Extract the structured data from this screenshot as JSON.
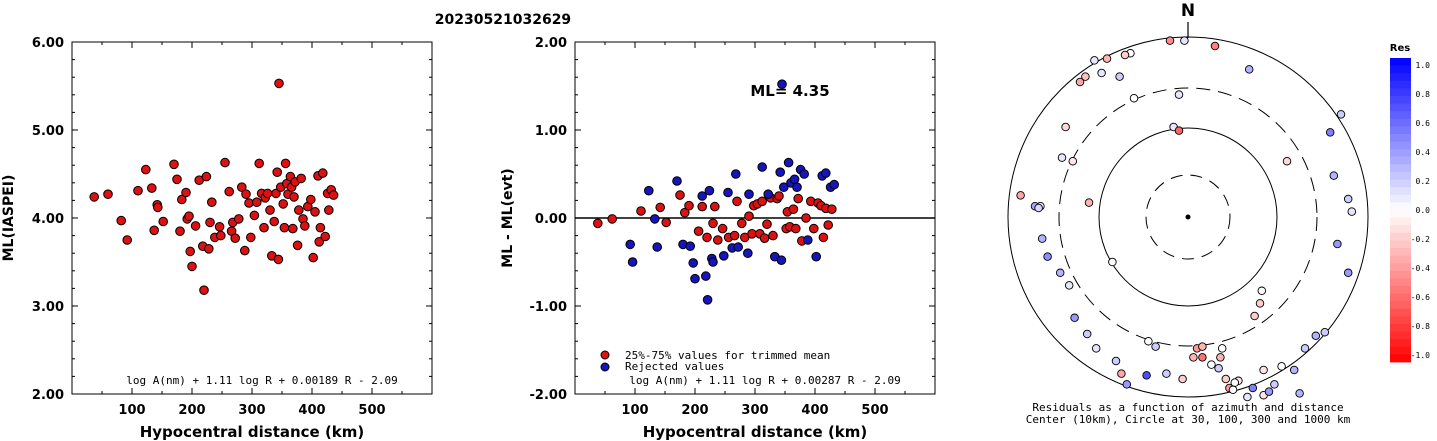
{
  "page_title": "20230521032629",
  "north_label": "N",
  "chart_data": [
    {
      "type": "scatter",
      "xlabel": "Hypocentral distance (km)",
      "ylabel": "ML(IASPEI)",
      "xlim": [
        0,
        600
      ],
      "ylim": [
        2.0,
        6.0
      ],
      "xticks": [
        "100",
        "200",
        "300",
        "400",
        "500"
      ],
      "yticks": [
        "2.00",
        "3.00",
        "4.00",
        "5.00",
        "6.00"
      ],
      "formula": "log A(nm) + 1.11 log R + 0.00189 R - 2.09",
      "series": [
        {
          "color": "#dd1111",
          "points": [
            [
              37,
              4.24
            ],
            [
              60,
              4.27
            ],
            [
              82,
              3.97
            ],
            [
              92,
              3.75
            ],
            [
              110,
              4.31
            ],
            [
              123,
              4.55
            ],
            [
              133,
              4.34
            ],
            [
              137,
              3.86
            ],
            [
              142,
              4.15
            ],
            [
              143,
              4.12
            ],
            [
              152,
              3.96
            ],
            [
              170,
              4.61
            ],
            [
              175,
              4.44
            ],
            [
              180,
              3.85
            ],
            [
              183,
              4.21
            ],
            [
              190,
              4.29
            ],
            [
              192,
              3.99
            ],
            [
              195,
              4.02
            ],
            [
              197,
              3.62
            ],
            [
              200,
              3.45
            ],
            [
              206,
              3.91
            ],
            [
              212,
              4.43
            ],
            [
              218,
              3.68
            ],
            [
              220,
              3.18
            ],
            [
              224,
              4.47
            ],
            [
              228,
              3.65
            ],
            [
              230,
              3.95
            ],
            [
              233,
              4.18
            ],
            [
              238,
              3.78
            ],
            [
              246,
              3.9
            ],
            [
              248,
              3.8
            ],
            [
              255,
              4.63
            ],
            [
              262,
              4.3
            ],
            [
              266,
              3.85
            ],
            [
              268,
              3.95
            ],
            [
              272,
              3.77
            ],
            [
              278,
              3.99
            ],
            [
              283,
              4.35
            ],
            [
              288,
              3.63
            ],
            [
              290,
              4.27
            ],
            [
              295,
              4.17
            ],
            [
              298,
              3.78
            ],
            [
              304,
              4.03
            ],
            [
              308,
              4.18
            ],
            [
              312,
              4.62
            ],
            [
              316,
              4.28
            ],
            [
              320,
              3.89
            ],
            [
              322,
              4.23
            ],
            [
              326,
              4.28
            ],
            [
              330,
              4.09
            ],
            [
              333,
              3.57
            ],
            [
              337,
              3.96
            ],
            [
              340,
              4.28
            ],
            [
              342,
              4.52
            ],
            [
              344,
              3.53
            ],
            [
              345,
              5.53
            ],
            [
              348,
              4.35
            ],
            [
              352,
              4.16
            ],
            [
              354,
              3.89
            ],
            [
              356,
              4.62
            ],
            [
              358,
              4.39
            ],
            [
              360,
              4.27
            ],
            [
              364,
              4.47
            ],
            [
              366,
              4.35
            ],
            [
              368,
              3.88
            ],
            [
              370,
              4.24
            ],
            [
              372,
              4.41
            ],
            [
              376,
              3.69
            ],
            [
              378,
              4.09
            ],
            [
              382,
              4.45
            ],
            [
              385,
              3.99
            ],
            [
              388,
              3.91
            ],
            [
              393,
              4.13
            ],
            [
              398,
              4.21
            ],
            [
              402,
              3.55
            ],
            [
              405,
              4.07
            ],
            [
              410,
              4.48
            ],
            [
              412,
              3.73
            ],
            [
              414,
              3.89
            ],
            [
              418,
              4.51
            ],
            [
              422,
              3.79
            ],
            [
              426,
              4.28
            ],
            [
              428,
              4.09
            ],
            [
              432,
              4.32
            ],
            [
              436,
              4.26
            ]
          ]
        }
      ]
    },
    {
      "type": "scatter",
      "xlabel": "Hypocentral distance (km)",
      "ylabel": "ML - ML(evt)",
      "xlim": [
        0,
        600
      ],
      "ylim": [
        -2.0,
        2.0
      ],
      "xticks": [
        "100",
        "200",
        "300",
        "400",
        "500"
      ],
      "yticks": [
        "-2.00",
        "-1.00",
        "0.00",
        "1.00",
        "2.00"
      ],
      "annotation": "ML= 4.35",
      "formula": "log A(nm) + 1.11 log R + 0.00287 R - 2.09",
      "legend": [
        "25%-75% values for trimmed mean",
        "Rejected values"
      ],
      "legend_position": "bottom-left",
      "series": [
        {
          "name": "25%-75% values for trimmed mean",
          "color": "#dd1111",
          "points": [
            [
              38,
              -0.06
            ],
            [
              62,
              -0.01
            ],
            [
              110,
              0.08
            ],
            [
              142,
              0.12
            ],
            [
              152,
              -0.05
            ],
            [
              175,
              0.26
            ],
            [
              183,
              0.06
            ],
            [
              190,
              0.14
            ],
            [
              206,
              -0.15
            ],
            [
              212,
              0.13
            ],
            [
              220,
              -0.22
            ],
            [
              230,
              -0.06
            ],
            [
              233,
              0.13
            ],
            [
              238,
              -0.25
            ],
            [
              246,
              -0.12
            ],
            [
              256,
              -0.22
            ],
            [
              266,
              -0.2
            ],
            [
              270,
              0.19
            ],
            [
              278,
              -0.06
            ],
            [
              283,
              -0.22
            ],
            [
              290,
              0.02
            ],
            [
              295,
              -0.18
            ],
            [
              298,
              0.14
            ],
            [
              304,
              0.16
            ],
            [
              308,
              -0.18
            ],
            [
              312,
              0.19
            ],
            [
              316,
              -0.23
            ],
            [
              320,
              -0.07
            ],
            [
              326,
              0.23
            ],
            [
              330,
              -0.2
            ],
            [
              337,
              0.22
            ],
            [
              340,
              0.25
            ],
            [
              352,
              -0.12
            ],
            [
              354,
              0.07
            ],
            [
              358,
              -0.1
            ],
            [
              364,
              0.1
            ],
            [
              368,
              -0.12
            ],
            [
              372,
              0.22
            ],
            [
              378,
              -0.26
            ],
            [
              385,
              0.0
            ],
            [
              393,
              0.19
            ],
            [
              398,
              -0.12
            ],
            [
              405,
              0.17
            ],
            [
              410,
              0.14
            ],
            [
              414,
              -0.22
            ],
            [
              418,
              0.11
            ],
            [
              422,
              -0.08
            ],
            [
              428,
              0.1
            ]
          ]
        },
        {
          "name": "Rejected values",
          "color": "#1515bb",
          "points": [
            [
              92,
              -0.3
            ],
            [
              96,
              -0.5
            ],
            [
              123,
              0.31
            ],
            [
              133,
              -0.01
            ],
            [
              137,
              -0.33
            ],
            [
              170,
              0.42
            ],
            [
              180,
              -0.3
            ],
            [
              192,
              -0.32
            ],
            [
              197,
              -0.51
            ],
            [
              200,
              -0.69
            ],
            [
              212,
              0.25
            ],
            [
              218,
              -0.66
            ],
            [
              221,
              -0.93
            ],
            [
              224,
              0.31
            ],
            [
              228,
              -0.46
            ],
            [
              230,
              -0.5
            ],
            [
              248,
              -0.43
            ],
            [
              255,
              0.29
            ],
            [
              262,
              -0.34
            ],
            [
              268,
              0.5
            ],
            [
              272,
              -0.33
            ],
            [
              288,
              -0.4
            ],
            [
              290,
              0.27
            ],
            [
              312,
              0.58
            ],
            [
              322,
              0.27
            ],
            [
              333,
              -0.44
            ],
            [
              342,
              0.52
            ],
            [
              344,
              -0.48
            ],
            [
              345,
              1.52
            ],
            [
              348,
              0.35
            ],
            [
              356,
              0.63
            ],
            [
              360,
              0.4
            ],
            [
              366,
              0.44
            ],
            [
              370,
              0.35
            ],
            [
              376,
              0.55
            ],
            [
              382,
              0.5
            ],
            [
              388,
              -0.25
            ],
            [
              402,
              -0.44
            ],
            [
              412,
              0.48
            ],
            [
              418,
              0.51
            ],
            [
              426,
              0.35
            ],
            [
              432,
              0.38
            ]
          ]
        }
      ]
    }
  ],
  "polar": {
    "circle_label_line1": "Residuals as a function of azimuth and distance",
    "circle_label_line2": "Center (10km), Circle at 30, 100, 300 and 1000 km",
    "stations": [
      [
        -0.93,
        0.12,
        -0.35
      ],
      [
        -0.82,
        0.06,
        0.05
      ],
      [
        -0.85,
        0.06,
        0.35
      ],
      [
        -0.83,
        0.05,
        0.15
      ],
      [
        -0.81,
        -0.12,
        0.3
      ],
      [
        -0.78,
        -0.22,
        0.45
      ],
      [
        -0.7,
        0.33,
        0.1
      ],
      [
        -0.68,
        0.5,
        -0.15
      ],
      [
        -0.64,
        0.31,
        -0.1
      ],
      [
        -0.71,
        -0.31,
        0.3
      ],
      [
        -0.66,
        -0.38,
        0.1
      ],
      [
        -0.63,
        -0.56,
        0.4
      ],
      [
        -0.56,
        -0.65,
        0.2
      ],
      [
        -0.51,
        -0.73,
        0.1
      ],
      [
        -0.55,
        0.08,
        -0.3
      ],
      [
        -0.42,
        -0.25,
        0.0
      ],
      [
        -0.37,
        -0.87,
        -0.35
      ],
      [
        -0.23,
        -0.88,
        0.7
      ],
      [
        -0.12,
        -0.87,
        0.2
      ],
      [
        -0.1,
        0.98,
        -0.45
      ],
      [
        -0.08,
        0.5,
        0.1
      ],
      [
        -0.05,
        0.48,
        -0.6
      ],
      [
        -0.02,
        0.98,
        0.1
      ],
      [
        0.03,
        -0.78,
        -0.3
      ],
      [
        0.05,
        -0.73,
        -0.4
      ],
      [
        0.08,
        -0.78,
        -0.55
      ],
      [
        0.08,
        -0.72,
        -0.3
      ],
      [
        0.13,
        -0.82,
        0.0
      ],
      [
        0.15,
        0.95,
        -0.5
      ],
      [
        0.21,
        -0.9,
        -0.2
      ],
      [
        0.23,
        -0.95,
        -0.4
      ],
      [
        0.28,
        -0.91,
        -0.1
      ],
      [
        0.33,
        -1.0,
        0.1
      ],
      [
        0.36,
        -0.95,
        0.5
      ],
      [
        0.42,
        -0.99,
        -0.1
      ],
      [
        0.45,
        -0.97,
        0.4
      ],
      [
        0.48,
        -0.93,
        0.2
      ],
      [
        0.55,
        0.31,
        -0.15
      ],
      [
        0.59,
        -0.85,
        0.3
      ],
      [
        0.62,
        -0.98,
        0.3
      ],
      [
        0.65,
        -0.73,
        0.2
      ],
      [
        0.71,
        -0.66,
        0.3
      ],
      [
        0.76,
        -0.64,
        0.2
      ],
      [
        0.79,
        0.47,
        0.5
      ],
      [
        0.81,
        0.23,
        0.3
      ],
      [
        0.83,
        -0.15,
        0.4
      ],
      [
        0.85,
        0.57,
        0.2
      ],
      [
        0.89,
        0.1,
        0.2
      ],
      [
        0.89,
        -0.31,
        0.4
      ],
      [
        0.91,
        0.03,
        0.1
      ],
      [
        -0.4,
        -0.8,
        0.2
      ],
      [
        -0.18,
        -0.72,
        0.2
      ],
      [
        0.17,
        -0.84,
        0.2
      ],
      [
        0.19,
        -0.73,
        0.0
      ],
      [
        0.26,
        -0.92,
        0.0
      ],
      [
        0.37,
        -0.55,
        -0.2
      ],
      [
        0.4,
        -0.48,
        -0.2
      ],
      [
        0.41,
        -0.41,
        0.0
      ],
      [
        -0.22,
        -0.69,
        0.0
      ],
      [
        0.25,
        -0.96,
        0.0
      ],
      [
        -0.57,
        0.78,
        -0.25
      ],
      [
        -0.6,
        0.75,
        -0.35
      ],
      [
        -0.52,
        0.87,
        0.1
      ],
      [
        -0.48,
        0.8,
        0.1
      ],
      [
        -0.38,
        0.78,
        0.2
      ],
      [
        -0.32,
        0.91,
        0.0
      ],
      [
        -0.45,
        0.88,
        -0.3
      ],
      [
        -0.35,
        0.9,
        -0.2
      ],
      [
        -0.3,
        0.66,
        0.0
      ],
      [
        -0.05,
        0.68,
        0.1
      ],
      [
        0.34,
        0.82,
        0.3
      ],
      [
        -0.34,
        -0.93,
        0.4
      ],
      [
        -0.03,
        -0.9,
        -0.2
      ],
      [
        0.42,
        -0.85,
        -0.1
      ],
      [
        0.52,
        -0.83,
        0.0
      ],
      [
        0.18,
        -0.78,
        -0.3
      ]
    ]
  },
  "colorbar": {
    "title": "Res",
    "labels": [
      "1.0",
      "0.8",
      "0.6",
      "0.4",
      "0.2",
      "0.0",
      "-0.2",
      "-0.4",
      "-0.6",
      "-0.8",
      "-1.0"
    ]
  }
}
